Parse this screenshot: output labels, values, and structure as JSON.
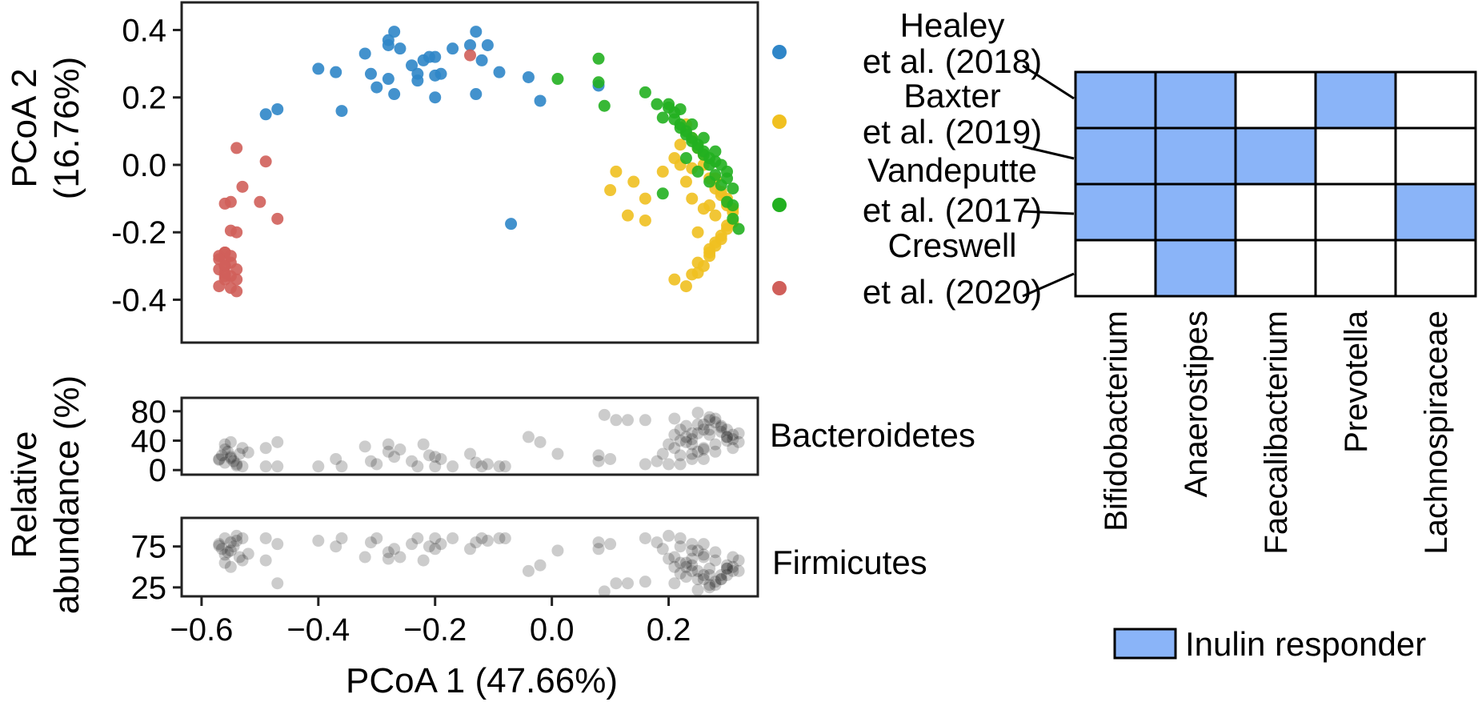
{
  "chart_data": [
    {
      "type": "scatter",
      "panel": "pcoa",
      "xlabel": "PCoA 1 (47.66%)",
      "ylabel_lines": [
        "PCoA 2",
        "(16.76%)"
      ],
      "xlim": [
        -0.63,
        0.35
      ],
      "ylim": [
        -0.52,
        0.47
      ],
      "xticks": [
        -0.6,
        -0.4,
        -0.2,
        0.0,
        0.2
      ],
      "xtick_labels": [
        "−0.6",
        "−0.4",
        "−0.2",
        "0.0",
        "0.2"
      ],
      "yticks": [
        0.4,
        0.2,
        0.0,
        -0.2,
        -0.4
      ],
      "ytick_labels": [
        "0.4",
        "0.2",
        "0.0",
        "-0.2",
        "-0.4"
      ],
      "grid": false,
      "legend_placement": "right",
      "series": [
        {
          "name_lines": [
            "Healey",
            "et al. (2018)"
          ],
          "color": "#2f86c8",
          "x": [
            -0.49,
            -0.47,
            -0.4,
            -0.37,
            -0.36,
            -0.32,
            -0.31,
            -0.3,
            -0.28,
            -0.27,
            -0.28,
            -0.28,
            -0.27,
            -0.26,
            -0.24,
            -0.23,
            -0.23,
            -0.22,
            -0.21,
            -0.2,
            -0.2,
            -0.19,
            -0.2,
            -0.17,
            -0.14,
            -0.13,
            -0.12,
            -0.13,
            -0.11,
            -0.09,
            -0.04,
            -0.02,
            0.08,
            -0.07
          ],
          "y": [
            0.15,
            0.165,
            0.285,
            0.275,
            0.16,
            0.33,
            0.27,
            0.23,
            0.37,
            0.395,
            0.355,
            0.255,
            0.21,
            0.345,
            0.295,
            0.27,
            0.25,
            0.31,
            0.32,
            0.265,
            0.2,
            0.27,
            0.32,
            0.345,
            0.355,
            0.395,
            0.31,
            0.21,
            0.355,
            0.275,
            0.26,
            0.19,
            0.235,
            -0.175
          ]
        },
        {
          "name_lines": [
            "Baxter",
            "et al. (2019)"
          ],
          "color": "#f0c020",
          "x": [
            0.11,
            0.1,
            0.14,
            0.16,
            0.13,
            0.16,
            0.19,
            0.21,
            0.22,
            0.23,
            0.24,
            0.25,
            0.26,
            0.27,
            0.28,
            0.29,
            0.3,
            0.31,
            0.31,
            0.3,
            0.29,
            0.28,
            0.27,
            0.27,
            0.26,
            0.25,
            0.24,
            0.25,
            0.27,
            0.28,
            0.29,
            0.3,
            0.28,
            0.26,
            0.24,
            0.23,
            0.22,
            0.21,
            0.23,
            0.25,
            0.27,
            0.29,
            0.26,
            0.24,
            0.28,
            0.3,
            0.31
          ],
          "y": [
            -0.02,
            -0.075,
            -0.05,
            -0.1,
            -0.15,
            -0.165,
            -0.02,
            0.02,
            0.06,
            0.12,
            0.08,
            0.05,
            0.0,
            -0.04,
            -0.07,
            -0.09,
            -0.12,
            -0.14,
            -0.17,
            -0.19,
            -0.21,
            -0.23,
            -0.25,
            -0.27,
            -0.3,
            -0.32,
            -0.325,
            -0.29,
            -0.26,
            -0.24,
            -0.22,
            -0.18,
            -0.15,
            -0.13,
            -0.1,
            -0.05,
            0.0,
            -0.34,
            -0.36,
            -0.2,
            -0.12,
            -0.08,
            0.03,
            -0.01,
            -0.04,
            -0.1,
            -0.13
          ]
        },
        {
          "name_lines": [
            "Vandeputte",
            "et al. (2017)"
          ],
          "color": "#22b020",
          "x": [
            0.01,
            0.08,
            0.08,
            0.09,
            0.16,
            0.18,
            0.19,
            0.2,
            0.21,
            0.22,
            0.23,
            0.24,
            0.25,
            0.26,
            0.27,
            0.28,
            0.29,
            0.3,
            0.31,
            0.31,
            0.32,
            0.31,
            0.3,
            0.29,
            0.28,
            0.27,
            0.26,
            0.25,
            0.24,
            0.23,
            0.22,
            0.21,
            0.2,
            0.22,
            0.24,
            0.26,
            0.28,
            0.3,
            0.27,
            0.25,
            0.23,
            0.19
          ],
          "y": [
            0.255,
            0.315,
            0.245,
            0.175,
            0.215,
            0.18,
            0.14,
            0.17,
            0.155,
            0.12,
            0.1,
            0.08,
            0.06,
            0.04,
            0.02,
            0.01,
            0.0,
            -0.04,
            -0.07,
            -0.12,
            -0.19,
            -0.16,
            -0.11,
            -0.06,
            -0.03,
            0.0,
            0.03,
            0.05,
            0.07,
            0.09,
            0.11,
            0.135,
            0.18,
            0.165,
            0.12,
            0.08,
            0.04,
            -0.02,
            -0.05,
            -0.02,
            0.02,
            -0.085
          ]
        },
        {
          "name_lines": [
            "Creswell",
            "et al. (2020)"
          ],
          "color": "#d05f5a",
          "x": [
            -0.54,
            -0.49,
            -0.53,
            -0.56,
            -0.55,
            -0.5,
            -0.47,
            -0.55,
            -0.54,
            -0.56,
            -0.57,
            -0.56,
            -0.55,
            -0.56,
            -0.57,
            -0.56,
            -0.55,
            -0.54,
            -0.56,
            -0.57,
            -0.55,
            -0.54,
            -0.56,
            -0.57,
            -0.56,
            -0.55,
            -0.54,
            -0.56,
            -0.14
          ],
          "y": [
            0.05,
            0.01,
            -0.065,
            -0.115,
            -0.11,
            -0.11,
            -0.16,
            -0.195,
            -0.2,
            -0.26,
            -0.27,
            -0.28,
            -0.29,
            -0.3,
            -0.31,
            -0.32,
            -0.33,
            -0.34,
            -0.34,
            -0.36,
            -0.365,
            -0.375,
            -0.26,
            -0.28,
            -0.3,
            -0.27,
            -0.31,
            -0.33,
            0.325
          ]
        }
      ]
    },
    {
      "type": "scatter",
      "panel": "bacteroidetes",
      "title": "Bacteroidetes",
      "ylabel_lines": [
        "Relative",
        "abundance (%)"
      ],
      "xlim": [
        -0.63,
        0.35
      ],
      "ylim": [
        -3,
        95
      ],
      "yticks": [
        80,
        40,
        0
      ],
      "ytick_labels": [
        "80",
        "40",
        "0"
      ],
      "series": [
        {
          "color": "#000000",
          "opacity": 0.2,
          "x": [
            -0.57,
            -0.565,
            -0.56,
            -0.555,
            -0.55,
            -0.545,
            -0.54,
            -0.535,
            -0.53,
            -0.56,
            -0.55,
            -0.54,
            -0.57,
            -0.56,
            -0.55,
            -0.53,
            -0.52,
            -0.49,
            -0.49,
            -0.47,
            -0.47,
            -0.4,
            -0.37,
            -0.36,
            -0.32,
            -0.31,
            -0.3,
            -0.28,
            -0.27,
            -0.28,
            -0.26,
            -0.24,
            -0.23,
            -0.22,
            -0.21,
            -0.2,
            -0.2,
            -0.19,
            -0.17,
            -0.14,
            -0.13,
            -0.12,
            -0.11,
            -0.09,
            -0.08,
            -0.04,
            -0.02,
            0.01,
            0.08,
            0.08,
            0.09,
            0.1,
            0.11,
            0.13,
            0.16,
            0.16,
            0.18,
            0.19,
            0.2,
            0.21,
            0.22,
            0.23,
            0.24,
            0.25,
            0.26,
            0.27,
            0.28,
            0.29,
            0.3,
            0.31,
            0.32,
            0.31,
            0.3,
            0.29,
            0.28,
            0.27,
            0.26,
            0.25,
            0.24,
            0.23,
            0.22,
            0.21,
            0.2,
            0.22,
            0.24,
            0.26,
            0.28,
            0.3,
            0.27,
            0.25,
            0.23,
            0.21,
            0.25,
            0.27,
            0.29,
            0.31,
            0.24,
            0.26,
            0.28,
            0.3,
            0.32,
            0.22,
            0.24,
            0.26
          ],
          "y": [
            15,
            20,
            10,
            25,
            18,
            12,
            8,
            22,
            5,
            35,
            38,
            6,
            14,
            28,
            16,
            30,
            24,
            5,
            30,
            38,
            5,
            5,
            15,
            5,
            32,
            12,
            8,
            35,
            18,
            25,
            28,
            12,
            5,
            35,
            20,
            5,
            18,
            15,
            5,
            22,
            10,
            5,
            8,
            5,
            5,
            45,
            38,
            22,
            12,
            20,
            75,
            15,
            68,
            68,
            68,
            8,
            12,
            22,
            35,
            48,
            55,
            60,
            42,
            50,
            62,
            48,
            70,
            52,
            45,
            30,
            38,
            48,
            55,
            60,
            65,
            72,
            30,
            25,
            50,
            45,
            40,
            30,
            8,
            20,
            35,
            15,
            25,
            40,
            55,
            62,
            38,
            70,
            78,
            68,
            58,
            42,
            15,
            28,
            35,
            45,
            50,
            8,
            22,
            55
          ]
        }
      ]
    },
    {
      "type": "scatter",
      "panel": "firmicutes",
      "title": "Firmicutes",
      "xlim": [
        -0.63,
        0.35
      ],
      "ylim": [
        17,
        107
      ],
      "yticks": [
        75,
        25
      ],
      "ytick_labels": [
        "75",
        "25"
      ],
      "series": [
        {
          "color": "#000000",
          "opacity": 0.2,
          "x": [
            -0.57,
            -0.565,
            -0.56,
            -0.555,
            -0.55,
            -0.545,
            -0.54,
            -0.535,
            -0.53,
            -0.56,
            -0.55,
            -0.54,
            -0.57,
            -0.56,
            -0.55,
            -0.53,
            -0.52,
            -0.49,
            -0.49,
            -0.47,
            -0.47,
            -0.4,
            -0.37,
            -0.36,
            -0.32,
            -0.31,
            -0.3,
            -0.28,
            -0.27,
            -0.28,
            -0.26,
            -0.24,
            -0.23,
            -0.22,
            -0.21,
            -0.2,
            -0.2,
            -0.19,
            -0.17,
            -0.14,
            -0.13,
            -0.12,
            -0.11,
            -0.09,
            -0.08,
            -0.04,
            -0.02,
            0.01,
            0.08,
            0.08,
            0.09,
            0.1,
            0.11,
            0.13,
            0.16,
            0.16,
            0.18,
            0.19,
            0.2,
            0.21,
            0.22,
            0.23,
            0.24,
            0.25,
            0.26,
            0.27,
            0.28,
            0.29,
            0.3,
            0.31,
            0.32,
            0.31,
            0.3,
            0.29,
            0.28,
            0.27,
            0.26,
            0.25,
            0.24,
            0.23,
            0.22,
            0.21,
            0.2,
            0.22,
            0.24,
            0.26,
            0.28,
            0.3,
            0.27,
            0.25,
            0.23,
            0.21,
            0.25,
            0.27,
            0.29,
            0.31,
            0.24,
            0.26,
            0.28,
            0.3,
            0.32,
            0.22,
            0.24,
            0.26
          ],
          "y": [
            78,
            72,
            85,
            68,
            80,
            75,
            88,
            62,
            85,
            55,
            50,
            82,
            76,
            65,
            70,
            58,
            66,
            85,
            58,
            78,
            30,
            82,
            75,
            85,
            62,
            80,
            85,
            60,
            72,
            68,
            62,
            78,
            85,
            58,
            75,
            85,
            72,
            78,
            85,
            72,
            80,
            85,
            82,
            85,
            85,
            45,
            52,
            70,
            80,
            72,
            20,
            78,
            30,
            30,
            32,
            85,
            80,
            72,
            60,
            50,
            42,
            38,
            52,
            45,
            35,
            48,
            28,
            40,
            48,
            62,
            58,
            45,
            40,
            35,
            32,
            25,
            62,
            70,
            45,
            50,
            55,
            62,
            88,
            75,
            60,
            78,
            68,
            52,
            40,
            35,
            55,
            30,
            22,
            28,
            35,
            50,
            78,
            65,
            58,
            48,
            45,
            85,
            70,
            40
          ]
        }
      ]
    },
    {
      "type": "table",
      "panel": "responder-matrix",
      "columns": [
        "Bifidobacterium",
        "Anaerostipes",
        "Faecalibacterium",
        "Prevotella",
        "Lachnospiraceae"
      ],
      "rows": [
        "Healey et al. (2018)",
        "Baxter et al. (2019)",
        "Vandeputte et al. (2017)",
        "Creswell et al. (2020)"
      ],
      "cells": [
        [
          true,
          true,
          false,
          true,
          false
        ],
        [
          true,
          true,
          true,
          false,
          false
        ],
        [
          true,
          true,
          false,
          false,
          true
        ],
        [
          false,
          true,
          false,
          false,
          false
        ]
      ],
      "fill_color": "#8ab4f8",
      "empty_color": "#ffffff",
      "legend_label": "Inulin responder"
    }
  ]
}
